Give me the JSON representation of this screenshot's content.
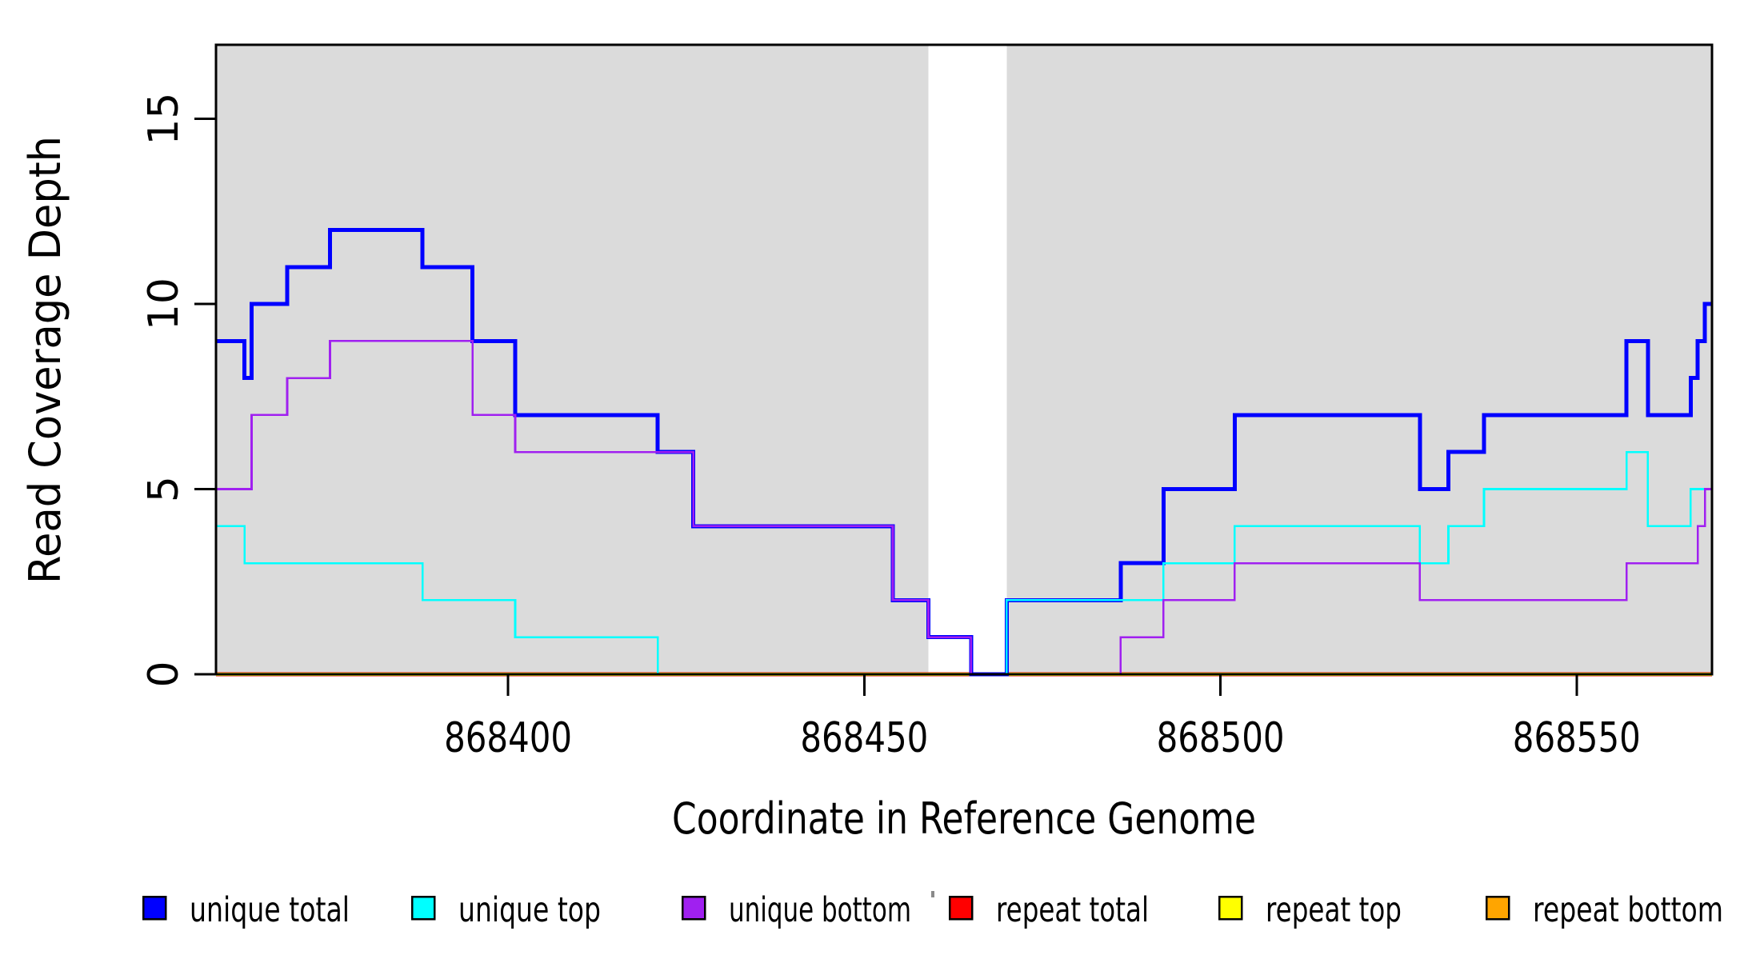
{
  "figure_colors": {
    "background": "#ffffff",
    "shaded_band": "#DBDBDB",
    "axis": "#000000"
  },
  "chart_data": {
    "type": "line",
    "subtype": "step",
    "title": "",
    "xlabel": "Coordinate in Reference Genome",
    "ylabel": "Read Coverage Depth",
    "xlim": [
      868359,
      868569
    ],
    "ylim": [
      0,
      17
    ],
    "x_ticks": [
      868400,
      868450,
      868500,
      868550
    ],
    "y_ticks": [
      0,
      5,
      10,
      15
    ],
    "grid": false,
    "legend_position": "bottom",
    "shaded_regions": [
      [
        868359,
        868459
      ],
      [
        868470,
        868569
      ]
    ],
    "gap_region": [
      868459,
      868470
    ],
    "draw_order": [
      "repeat total",
      "repeat top",
      "repeat bottom",
      "unique total",
      "unique top",
      "unique bottom"
    ],
    "series": [
      {
        "name": "unique total",
        "color": "#0000FF",
        "line_width": 5,
        "steps": [
          [
            868359,
            9
          ],
          [
            868363,
            8
          ],
          [
            868364,
            10
          ],
          [
            868369,
            11
          ],
          [
            868375,
            12
          ],
          [
            868388,
            11
          ],
          [
            868395,
            9
          ],
          [
            868401,
            7
          ],
          [
            868421,
            6
          ],
          [
            868426,
            4
          ],
          [
            868454,
            2
          ],
          [
            868459,
            1
          ],
          [
            868465,
            0
          ],
          [
            868470,
            2
          ],
          [
            868486,
            3
          ],
          [
            868492,
            5
          ],
          [
            868502,
            7
          ],
          [
            868528,
            5
          ],
          [
            868532,
            6
          ],
          [
            868537,
            7
          ],
          [
            868557,
            9
          ],
          [
            868560,
            7
          ],
          [
            868566,
            8
          ],
          [
            868567,
            9
          ],
          [
            868568,
            10
          ],
          [
            868569,
            10
          ]
        ]
      },
      {
        "name": "unique top",
        "color": "#00FFFF",
        "line_width": 2.6,
        "steps": [
          [
            868359,
            4
          ],
          [
            868363,
            3
          ],
          [
            868388,
            2
          ],
          [
            868401,
            1
          ],
          [
            868421,
            0
          ],
          [
            868470,
            2
          ],
          [
            868492,
            3
          ],
          [
            868502,
            4
          ],
          [
            868528,
            3
          ],
          [
            868532,
            4
          ],
          [
            868537,
            5
          ],
          [
            868557,
            6
          ],
          [
            868560,
            4
          ],
          [
            868566,
            5
          ],
          [
            868569,
            5
          ]
        ]
      },
      {
        "name": "unique bottom",
        "color": "#A020F0",
        "line_width": 2.6,
        "steps": [
          [
            868359,
            5
          ],
          [
            868364,
            7
          ],
          [
            868369,
            8
          ],
          [
            868375,
            9
          ],
          [
            868395,
            7
          ],
          [
            868401,
            6
          ],
          [
            868426,
            4
          ],
          [
            868454,
            2
          ],
          [
            868459,
            1
          ],
          [
            868465,
            0
          ],
          [
            868486,
            1
          ],
          [
            868492,
            2
          ],
          [
            868502,
            3
          ],
          [
            868528,
            2
          ],
          [
            868557,
            3
          ],
          [
            868567,
            4
          ],
          [
            868568,
            5
          ],
          [
            868569,
            5
          ]
        ]
      },
      {
        "name": "repeat total",
        "color": "#FF0000",
        "line_width": 4.6,
        "steps": [
          [
            868359,
            0
          ],
          [
            868569,
            0
          ]
        ]
      },
      {
        "name": "repeat top",
        "color": "#FFFF00",
        "line_width": 3.6,
        "steps": [
          [
            868359,
            0
          ],
          [
            868569,
            0
          ]
        ]
      },
      {
        "name": "repeat bottom",
        "color": "#FFA500",
        "line_width": 3.2,
        "steps": [
          [
            868359,
            0
          ],
          [
            868569,
            0
          ]
        ]
      }
    ]
  },
  "legend": {
    "items": [
      {
        "label": "unique total",
        "color": "#0000FF"
      },
      {
        "label": "unique top",
        "color": "#00FFFF"
      },
      {
        "label": "unique bottom",
        "color": "#A020F0"
      },
      {
        "label": "repeat total",
        "color": "#FF0000"
      },
      {
        "label": "repeat top",
        "color": "#FFFF00"
      },
      {
        "label": "repeat bottom",
        "color": "#FFA500"
      }
    ]
  }
}
